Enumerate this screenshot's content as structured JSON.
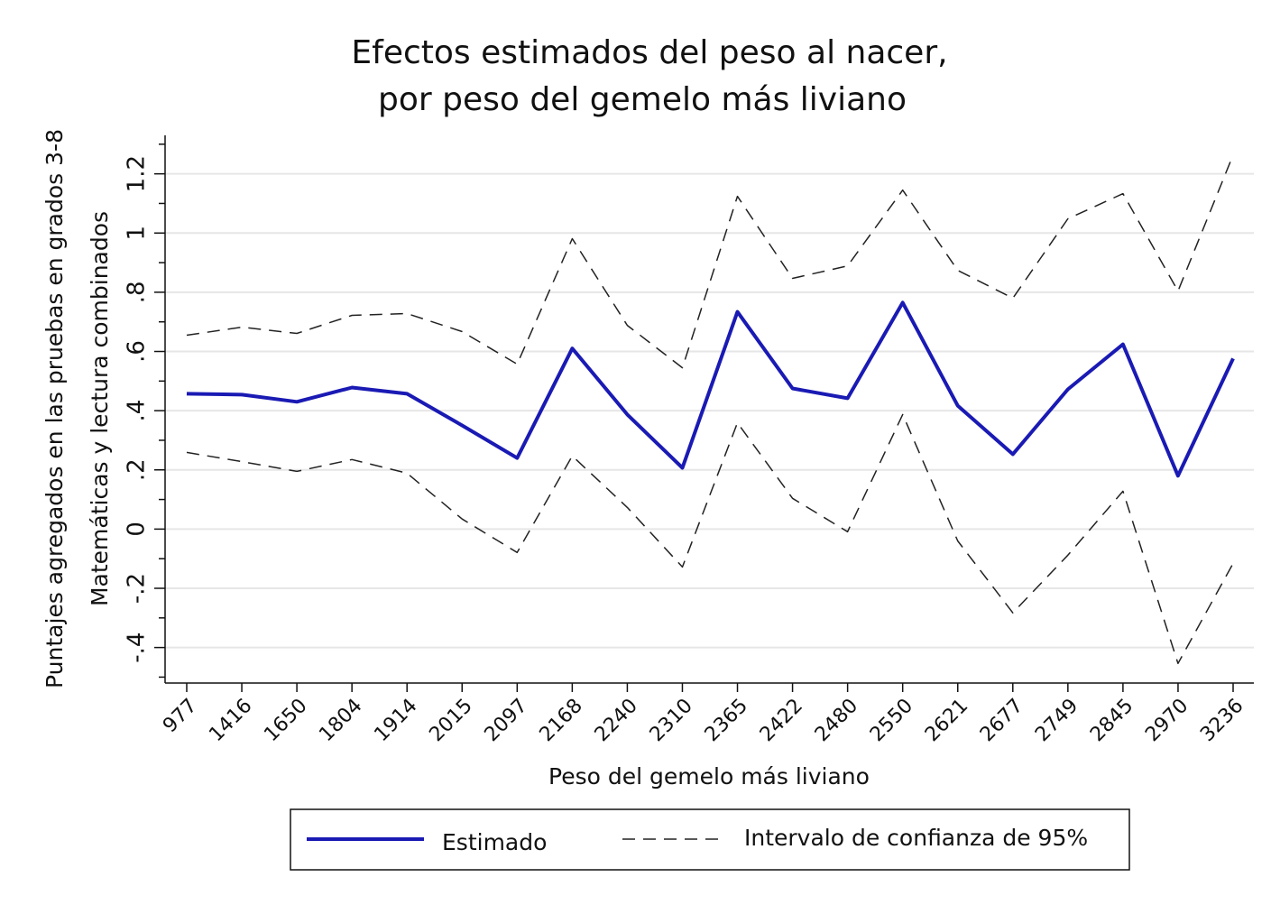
{
  "chart_data": {
    "type": "line",
    "title": [
      "Efectos estimados del peso al nacer,",
      "por peso del gemelo más liviano"
    ],
    "ylabel": [
      "Puntajes agregados en las pruebas en grados 3-8",
      "Matemáticas y lectura combinados"
    ],
    "xlabel": "Peso del gemelo más liviano",
    "categories": [
      "977",
      "1416",
      "1650",
      "1804",
      "1914",
      "2015",
      "2097",
      "2168",
      "2240",
      "2310",
      "2365",
      "2422",
      "2480",
      "2550",
      "2621",
      "2677",
      "2749",
      "2845",
      "2970",
      "3236"
    ],
    "series": [
      {
        "name": "Estimado",
        "color": "#1a1ab4",
        "values": [
          0.457,
          0.454,
          0.43,
          0.478,
          0.457,
          0.35,
          0.24,
          0.61,
          0.387,
          0.207,
          0.734,
          0.475,
          0.442,
          0.765,
          0.417,
          0.253,
          0.472,
          0.624,
          0.18,
          0.576
        ]
      },
      {
        "name": "Intervalo de confianza de 95%",
        "color": "#222222",
        "dashed": true,
        "upper": [
          0.655,
          0.682,
          0.661,
          0.722,
          0.728,
          0.667,
          0.557,
          0.981,
          0.688,
          0.545,
          1.124,
          0.847,
          0.889,
          1.145,
          0.874,
          0.78,
          1.048,
          1.133,
          0.804,
          1.264
        ],
        "lower": [
          0.259,
          0.228,
          0.195,
          0.235,
          0.189,
          0.034,
          -0.079,
          0.247,
          0.073,
          -0.128,
          0.359,
          0.104,
          -0.009,
          0.387,
          -0.04,
          -0.283,
          -0.088,
          0.128,
          -0.454,
          -0.116
        ]
      }
    ],
    "ylim": [
      -0.52,
      1.33
    ],
    "yticks": [
      {
        "value": -0.4,
        "label": "-.4"
      },
      {
        "value": -0.2,
        "label": "-.2"
      },
      0,
      {
        "value": 0.2,
        "label": ".2"
      },
      {
        "value": 0.4,
        "label": ".4"
      },
      {
        "value": 0.6,
        "label": ".6"
      },
      {
        "value": 0.8,
        "label": ".8"
      },
      1,
      {
        "value": 1.2,
        "label": "1.2"
      }
    ],
    "yminorticks": [
      -0.5,
      -0.3,
      -0.1,
      0.1,
      0.3,
      0.5,
      0.7,
      0.9,
      1.1,
      1.3
    ],
    "grid": true
  }
}
